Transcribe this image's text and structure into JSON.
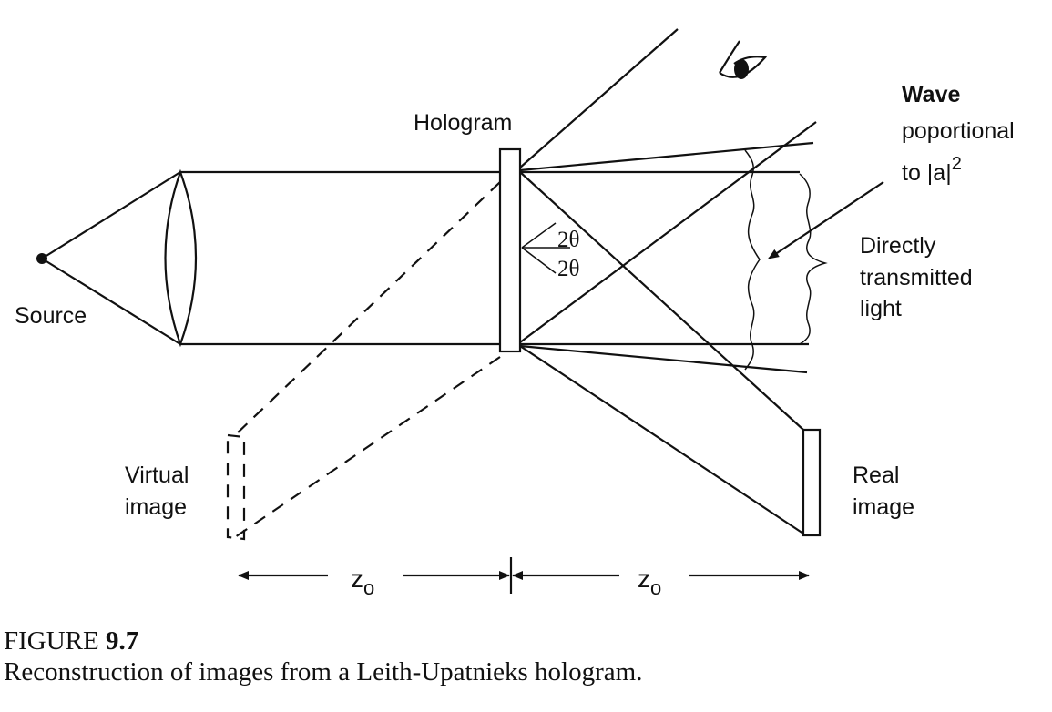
{
  "labels": {
    "source": "Source",
    "hologram": "Hologram",
    "wave_line1": "Wave",
    "wave_line2": "poportional",
    "wave_line3": "to |a|",
    "wave_exponent": "2",
    "direct_line1": "Directly",
    "direct_line2": "transmitted",
    "direct_line3": "light",
    "angle_upper": "2θ",
    "angle_lower": "2θ",
    "virtual_line1": "Virtual",
    "virtual_line2": "image",
    "real_line1": "Real",
    "real_line2": "image",
    "z_left": "z",
    "z_left_sub": "o",
    "z_right": "z",
    "z_right_sub": "o"
  },
  "caption": {
    "figure_prefix": "FIGURE ",
    "figure_number": "9.7",
    "text": "Reconstruction of images from a Leith-Upatnieks hologram."
  }
}
